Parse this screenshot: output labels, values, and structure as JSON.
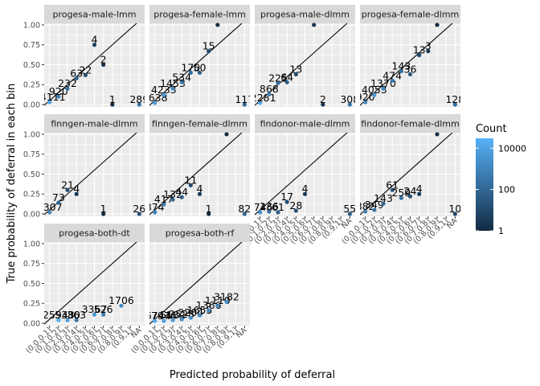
{
  "chart_data": {
    "type": "scatter",
    "title": "",
    "xlabel": "Predicted probability of deferral",
    "ylabel": "True probability of deferral in each bin",
    "x_categories": [
      "(0.0,0.1]",
      "(0.1,0.2]",
      "(0.2,0.3]",
      "(0.3,0.4]",
      "(0.4,0.5]",
      "(0.5,0.6]",
      "(0.6,0.7]",
      "(0.7,0.8]",
      "(0.8,0.9]",
      "(0.9,1]",
      "NA"
    ],
    "y_ticks": [
      "0.00",
      "0.25",
      "0.50",
      "0.75",
      "1.00"
    ],
    "ylim": [
      0,
      1.05
    ],
    "reference_line": "identity",
    "grid": true,
    "legend": {
      "title": "Count",
      "position": "right",
      "scale": "log",
      "labels": [
        "10000",
        "100",
        "1"
      ],
      "low_color": "#132B43",
      "high_color": "#56B1F7"
    },
    "panels": [
      {
        "name": "progesa-male-lmm",
        "points": [
          {
            "x": "(0.0,0.1]",
            "y": 0.03,
            "count": 14111,
            "label": "14111"
          },
          {
            "x": "(0.1,0.2]",
            "y": 0.1,
            "count": 920,
            "label": "920"
          },
          {
            "x": "(0.2,0.3]",
            "y": 0.2,
            "count": 232,
            "label": "232"
          },
          {
            "x": "(0.3,0.4]",
            "y": 0.33,
            "count": 63,
            "label": "63"
          },
          {
            "x": "(0.4,0.5]",
            "y": 0.37,
            "count": 22,
            "label": "22"
          },
          {
            "x": "(0.5,0.6]",
            "y": 0.75,
            "count": 4,
            "label": "4"
          },
          {
            "x": "(0.6,0.7]",
            "y": 0.5,
            "count": 2,
            "label": "2"
          },
          {
            "x": "(0.7,0.8]",
            "y": 0.0,
            "count": 1,
            "label": "1"
          },
          {
            "x": "NA",
            "y": 0.0,
            "count": 289,
            "label": "289"
          }
        ]
      },
      {
        "name": "progesa-female-lmm",
        "points": [
          {
            "x": "(0.0,0.1]",
            "y": 0.02,
            "count": 5638,
            "label": "5638"
          },
          {
            "x": "(0.1,0.2]",
            "y": 0.12,
            "count": 4233,
            "label": "4233"
          },
          {
            "x": "(0.2,0.3]",
            "y": 0.2,
            "count": 1453,
            "label": "1453"
          },
          {
            "x": "(0.3,0.4]",
            "y": 0.28,
            "count": 534,
            "label": "534"
          },
          {
            "x": "(0.4,0.5]",
            "y": 0.4,
            "count": 170,
            "label": "170"
          },
          {
            "x": "(0.5,0.6]",
            "y": 0.4,
            "count": 50,
            "label": "50"
          },
          {
            "x": "(0.6,0.7]",
            "y": 0.67,
            "count": 15,
            "label": "15"
          },
          {
            "x": "(0.7,0.8]",
            "y": 1.0,
            "count": 2,
            "label": "2"
          },
          {
            "x": "NA",
            "y": 0.0,
            "count": 117,
            "label": "117"
          }
        ]
      },
      {
        "name": "progesa-male-dlmm",
        "points": [
          {
            "x": "(0.0,0.1]",
            "y": 0.02,
            "count": 12281,
            "label": "12281"
          },
          {
            "x": "(0.1,0.2]",
            "y": 0.13,
            "count": 868,
            "label": "868"
          },
          {
            "x": "(0.2,0.3]",
            "y": 0.27,
            "count": 225,
            "label": "225"
          },
          {
            "x": "(0.3,0.4]",
            "y": 0.28,
            "count": 64,
            "label": "64"
          },
          {
            "x": "(0.4,0.5]",
            "y": 0.38,
            "count": 13,
            "label": "13"
          },
          {
            "x": "(0.6,0.7]",
            "y": 1.0,
            "count": 3,
            "label": "3"
          },
          {
            "x": "(0.7,0.8]",
            "y": 0.0,
            "count": 2,
            "label": "2"
          },
          {
            "x": "NA",
            "y": 0.0,
            "count": 308,
            "label": "308"
          }
        ]
      },
      {
        "name": "progesa-female-dlmm",
        "points": [
          {
            "x": "(0.0,0.1]",
            "y": 0.03,
            "count": 920,
            "label": "920"
          },
          {
            "x": "(0.1,0.2]",
            "y": 0.12,
            "count": 4053,
            "label": "4053"
          },
          {
            "x": "(0.2,0.3]",
            "y": 0.2,
            "count": 1370,
            "label": "1370"
          },
          {
            "x": "(0.3,0.4]",
            "y": 0.3,
            "count": 474,
            "label": "474"
          },
          {
            "x": "(0.4,0.5]",
            "y": 0.42,
            "count": 143,
            "label": "143"
          },
          {
            "x": "(0.5,0.6]",
            "y": 0.38,
            "count": 36,
            "label": "36"
          },
          {
            "x": "(0.6,0.7]",
            "y": 0.62,
            "count": 13,
            "label": "13"
          },
          {
            "x": "(0.7,0.8]",
            "y": 0.67,
            "count": 3,
            "label": "3"
          },
          {
            "x": "(0.8,0.9]",
            "y": 1.0,
            "count": 1,
            "label": "1"
          },
          {
            "x": "NA",
            "y": 0.0,
            "count": 128,
            "label": "128"
          }
        ]
      },
      {
        "name": "finngen-male-dlmm",
        "points": [
          {
            "x": "(0.0,0.1]",
            "y": 0.02,
            "count": 1307,
            "label": "1307"
          },
          {
            "x": "(0.1,0.2]",
            "y": 0.14,
            "count": 73,
            "label": "73"
          },
          {
            "x": "(0.2,0.3]",
            "y": 0.3,
            "count": 21,
            "label": "21"
          },
          {
            "x": "(0.3,0.4]",
            "y": 0.25,
            "count": 4,
            "label": "4"
          },
          {
            "x": "(0.6,0.7]",
            "y": 0.0,
            "count": 1,
            "label": "1"
          },
          {
            "x": "NA",
            "y": 0.0,
            "count": 26,
            "label": "26"
          }
        ]
      },
      {
        "name": "finngen-female-dlmm",
        "points": [
          {
            "x": "(0.0,0.1]",
            "y": 0.02,
            "count": 874,
            "label": "874"
          },
          {
            "x": "(0.1,0.2]",
            "y": 0.12,
            "count": 417,
            "label": "417"
          },
          {
            "x": "(0.2,0.3]",
            "y": 0.18,
            "count": 132,
            "label": "132"
          },
          {
            "x": "(0.3,0.4]",
            "y": 0.21,
            "count": 44,
            "label": "44"
          },
          {
            "x": "(0.4,0.5]",
            "y": 0.36,
            "count": 11,
            "label": "11"
          },
          {
            "x": "(0.5,0.6]",
            "y": 0.25,
            "count": 4,
            "label": "4"
          },
          {
            "x": "(0.6,0.7]",
            "y": 0.0,
            "count": 1,
            "label": "1"
          },
          {
            "x": "(0.8,0.9]",
            "y": 1.0,
            "count": 1,
            "label": "1"
          },
          {
            "x": "NA",
            "y": 0.0,
            "count": 82,
            "label": "82"
          }
        ]
      },
      {
        "name": "findonor-male-dlmm",
        "points": [
          {
            "x": "(0.0,0.1]",
            "y": 0.02,
            "count": 1746,
            "label": "1746"
          },
          {
            "x": "(0.1,0.2]",
            "y": 0.03,
            "count": 136,
            "label": "136"
          },
          {
            "x": "(0.2,0.3]",
            "y": 0.02,
            "count": 61,
            "label": "61"
          },
          {
            "x": "(0.3,0.4]",
            "y": 0.15,
            "count": 17,
            "label": "17"
          },
          {
            "x": "(0.4,0.5]",
            "y": 0.04,
            "count": 28,
            "label": "28"
          },
          {
            "x": "(0.5,0.6]",
            "y": 0.25,
            "count": 4,
            "label": "4"
          },
          {
            "x": "NA",
            "y": 0.0,
            "count": 55,
            "label": "55"
          }
        ]
      },
      {
        "name": "findonor-female-dlmm",
        "points": [
          {
            "x": "(0.0,0.1]",
            "y": 0.03,
            "count": 882,
            "label": "882"
          },
          {
            "x": "(0.1,0.2]",
            "y": 0.05,
            "count": 349,
            "label": "349"
          },
          {
            "x": "(0.2,0.3]",
            "y": 0.13,
            "count": 143,
            "label": "143"
          },
          {
            "x": "(0.3,0.4]",
            "y": 0.3,
            "count": 61,
            "label": "61"
          },
          {
            "x": "(0.4,0.5]",
            "y": 0.2,
            "count": 259,
            "label": "259"
          },
          {
            "x": "(0.5,0.6]",
            "y": 0.22,
            "count": 24,
            "label": "24"
          },
          {
            "x": "(0.6,0.7]",
            "y": 0.25,
            "count": 4,
            "label": "4"
          },
          {
            "x": "(0.8,0.9]",
            "y": 1.0,
            "count": 1,
            "label": "1"
          },
          {
            "x": "NA",
            "y": 0.0,
            "count": 10,
            "label": "10"
          }
        ]
      },
      {
        "name": "progesa-both-dt",
        "points": [
          {
            "x": "(0.1,0.2]",
            "y": 0.04,
            "count": 25943,
            "label": "25943"
          },
          {
            "x": "(0.2,0.3]",
            "y": 0.04,
            "count": 5380,
            "label": "5380"
          },
          {
            "x": "(0.3,0.4]",
            "y": 0.04,
            "count": 363,
            "label": "363"
          },
          {
            "x": "(0.5,0.6]",
            "y": 0.11,
            "count": 3367,
            "label": "3367"
          },
          {
            "x": "(0.6,0.7]",
            "y": 0.11,
            "count": 526,
            "label": "526"
          },
          {
            "x": "(0.8,0.9]",
            "y": 0.22,
            "count": 1706,
            "label": "1706"
          }
        ]
      },
      {
        "name": "progesa-both-rf",
        "points": [
          {
            "x": "(0.0,0.1]",
            "y": 0.03,
            "count": 16744,
            "label": "16744"
          },
          {
            "x": "(0.1,0.2]",
            "y": 0.03,
            "count": 7976,
            "label": "7976"
          },
          {
            "x": "(0.2,0.3]",
            "y": 0.04,
            "count": 5182,
            "label": "5182"
          },
          {
            "x": "(0.3,0.4]",
            "y": 0.05,
            "count": 2528,
            "label": "2528"
          },
          {
            "x": "(0.4,0.5]",
            "y": 0.07,
            "count": 2204,
            "label": "2204"
          },
          {
            "x": "(0.5,0.6]",
            "y": 0.1,
            "count": 1655,
            "label": "1655"
          },
          {
            "x": "(0.6,0.7]",
            "y": 0.16,
            "count": 1366,
            "label": "1366"
          },
          {
            "x": "(0.7,0.8]",
            "y": 0.22,
            "count": 1110,
            "label": "1110"
          },
          {
            "x": "(0.8,0.9]",
            "y": 0.27,
            "count": 3182,
            "label": "3182"
          }
        ]
      }
    ]
  }
}
